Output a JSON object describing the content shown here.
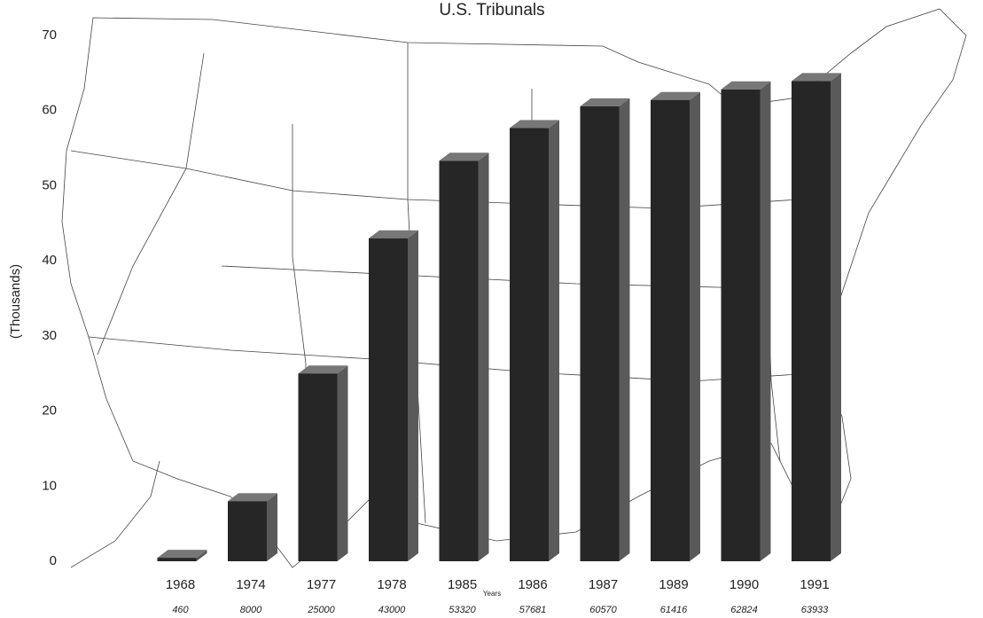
{
  "chart_data": {
    "type": "bar3d",
    "title": "U.S. Tribunals",
    "ylabel": "(Thousands)",
    "xlabel": "Years",
    "categories": [
      "1968",
      "1974",
      "1977",
      "1978",
      "1985",
      "1986",
      "1987",
      "1989",
      "1990",
      "1991"
    ],
    "values": [
      0.46,
      8,
      25,
      43,
      53.32,
      57.681,
      60.57,
      61.416,
      62.824,
      63.933
    ],
    "value_labels": [
      "460",
      "8000",
      "25000",
      "43000",
      "53320",
      "57681",
      "60570",
      "61416",
      "62824",
      "63933"
    ],
    "color": "#262626",
    "ylim": [
      0,
      70
    ],
    "yticks": [
      0,
      10,
      20,
      30,
      40,
      50,
      60,
      70
    ]
  }
}
